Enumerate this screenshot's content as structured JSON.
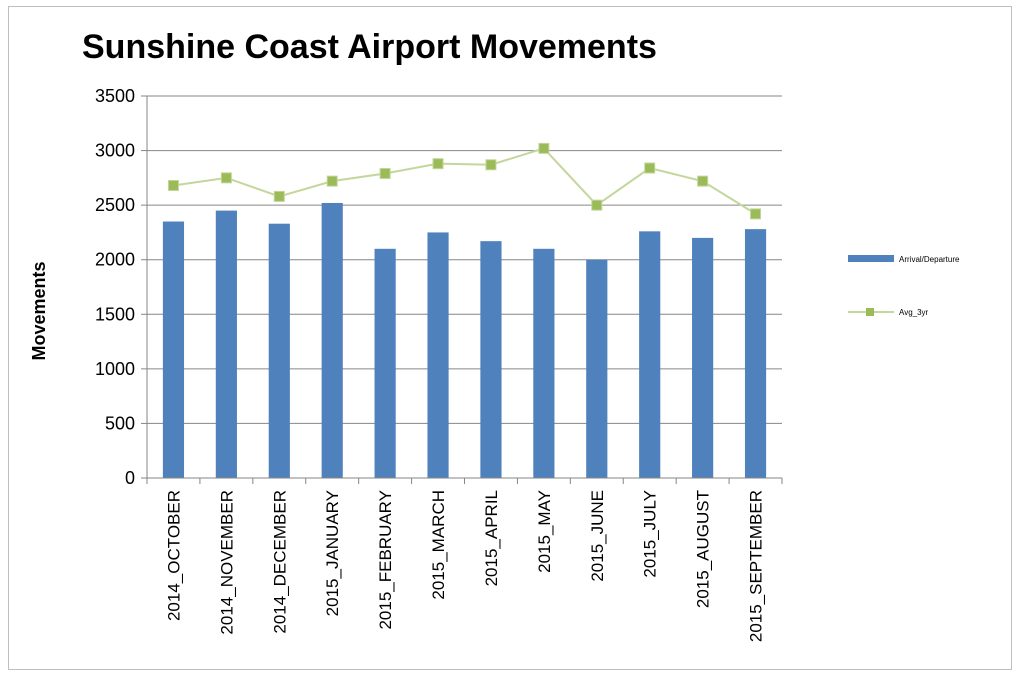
{
  "chart_data": {
    "type": "bar",
    "title": "Sunshine Coast Airport Movements",
    "xlabel": "",
    "ylabel": "Movements",
    "ylim": [
      0,
      3500
    ],
    "yticks": [
      "0",
      "500",
      "1000",
      "1500",
      "2000",
      "2500",
      "3000",
      "3500"
    ],
    "grid": true,
    "legend_position": "right",
    "categories": [
      "2014_OCTOBER",
      "2014_NOVEMBER",
      "2014_DECEMBER",
      "2015_JANUARY",
      "2015_FEBRUARY",
      "2015_MARCH",
      "2015_APRIL",
      "2015_MAY",
      "2015_JUNE",
      "2015_JULY",
      "2015_AUGUST",
      "2015_SEPTEMBER"
    ],
    "series": [
      {
        "name": "Arrival/Departure",
        "type": "bar",
        "color": "#4f81bd",
        "values": [
          2350,
          2450,
          2330,
          2520,
          2100,
          2250,
          2170,
          2100,
          2000,
          2260,
          2200,
          2280
        ]
      },
      {
        "name": "Avg_3yr",
        "type": "line",
        "color": "#c3d69b",
        "marker_color": "#9bbb59",
        "values": [
          2680,
          2750,
          2580,
          2720,
          2790,
          2880,
          2870,
          3020,
          2500,
          2840,
          2720,
          2420
        ]
      }
    ]
  }
}
